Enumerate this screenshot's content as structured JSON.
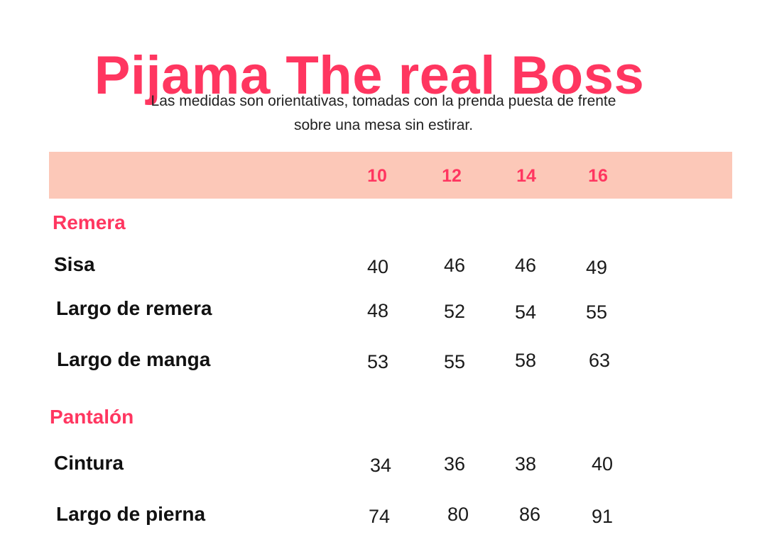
{
  "colors": {
    "accent": "#ff3660",
    "header_band": "#fcc8b8",
    "text": "#000000"
  },
  "title": "Pijama The real Boss",
  "subtitle": {
    "line1": "Las medidas son orientativas, tomadas con la prenda puesta de frente",
    "line2": "sobre una mesa sin estirar."
  },
  "table": {
    "sizes": [
      "10",
      "12",
      "14",
      "16"
    ],
    "sections": [
      {
        "title": "Remera",
        "rows": [
          {
            "label": "Sisa",
            "values": [
              "40",
              "46",
              "46",
              "49"
            ]
          },
          {
            "label": "Largo de remera",
            "values": [
              "48",
              "52",
              "54",
              "55"
            ]
          },
          {
            "label": "Largo de manga",
            "values": [
              "53",
              "55",
              "58",
              "63"
            ]
          }
        ]
      },
      {
        "title": "Pantalón",
        "rows": [
          {
            "label": "Cintura",
            "values": [
              "34",
              "36",
              "38",
              "40"
            ]
          },
          {
            "label": "Largo de pierna",
            "values": [
              "74",
              "80",
              "86",
              "91"
            ]
          }
        ]
      }
    ]
  }
}
